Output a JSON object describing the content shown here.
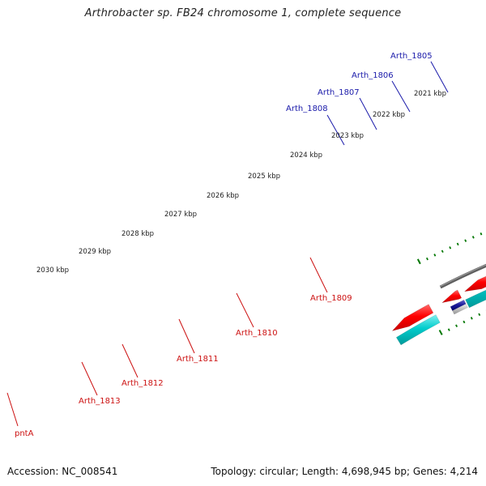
{
  "title": "Arthrobacter sp. FB24 chromosome 1, complete sequence",
  "accession": "Accession: NC_008541",
  "summary": "Topology: circular; Length: 4,698,945 bp; Genes: 4,214",
  "scale_labels": [
    "2021 kbp",
    "2022 kbp",
    "2023 kbp",
    "2024 kbp",
    "2025 kbp",
    "2026 kbp",
    "2027 kbp",
    "2028 kbp",
    "2029 kbp",
    "2030 kbp"
  ],
  "forward_genes": [
    "Arth_1805",
    "Arth_1806",
    "Arth_1807",
    "Arth_1808"
  ],
  "reverse_genes": [
    "Arth_1809",
    "Arth_1810",
    "Arth_1811",
    "Arth_1812",
    "Arth_1813",
    "pntA"
  ],
  "colors": {
    "cds_red": "#ff0000",
    "cds_blue": "#0000ee",
    "cds_cyan": "#00cccc",
    "cds_olive": "#6b8e23",
    "cds_gray": "#bbbbbb",
    "cds_navy": "#00008b",
    "backbone": "#777777",
    "tick_green": "#007700",
    "label_forward": "#1a1aaa",
    "label_reverse": "#cc1111"
  }
}
